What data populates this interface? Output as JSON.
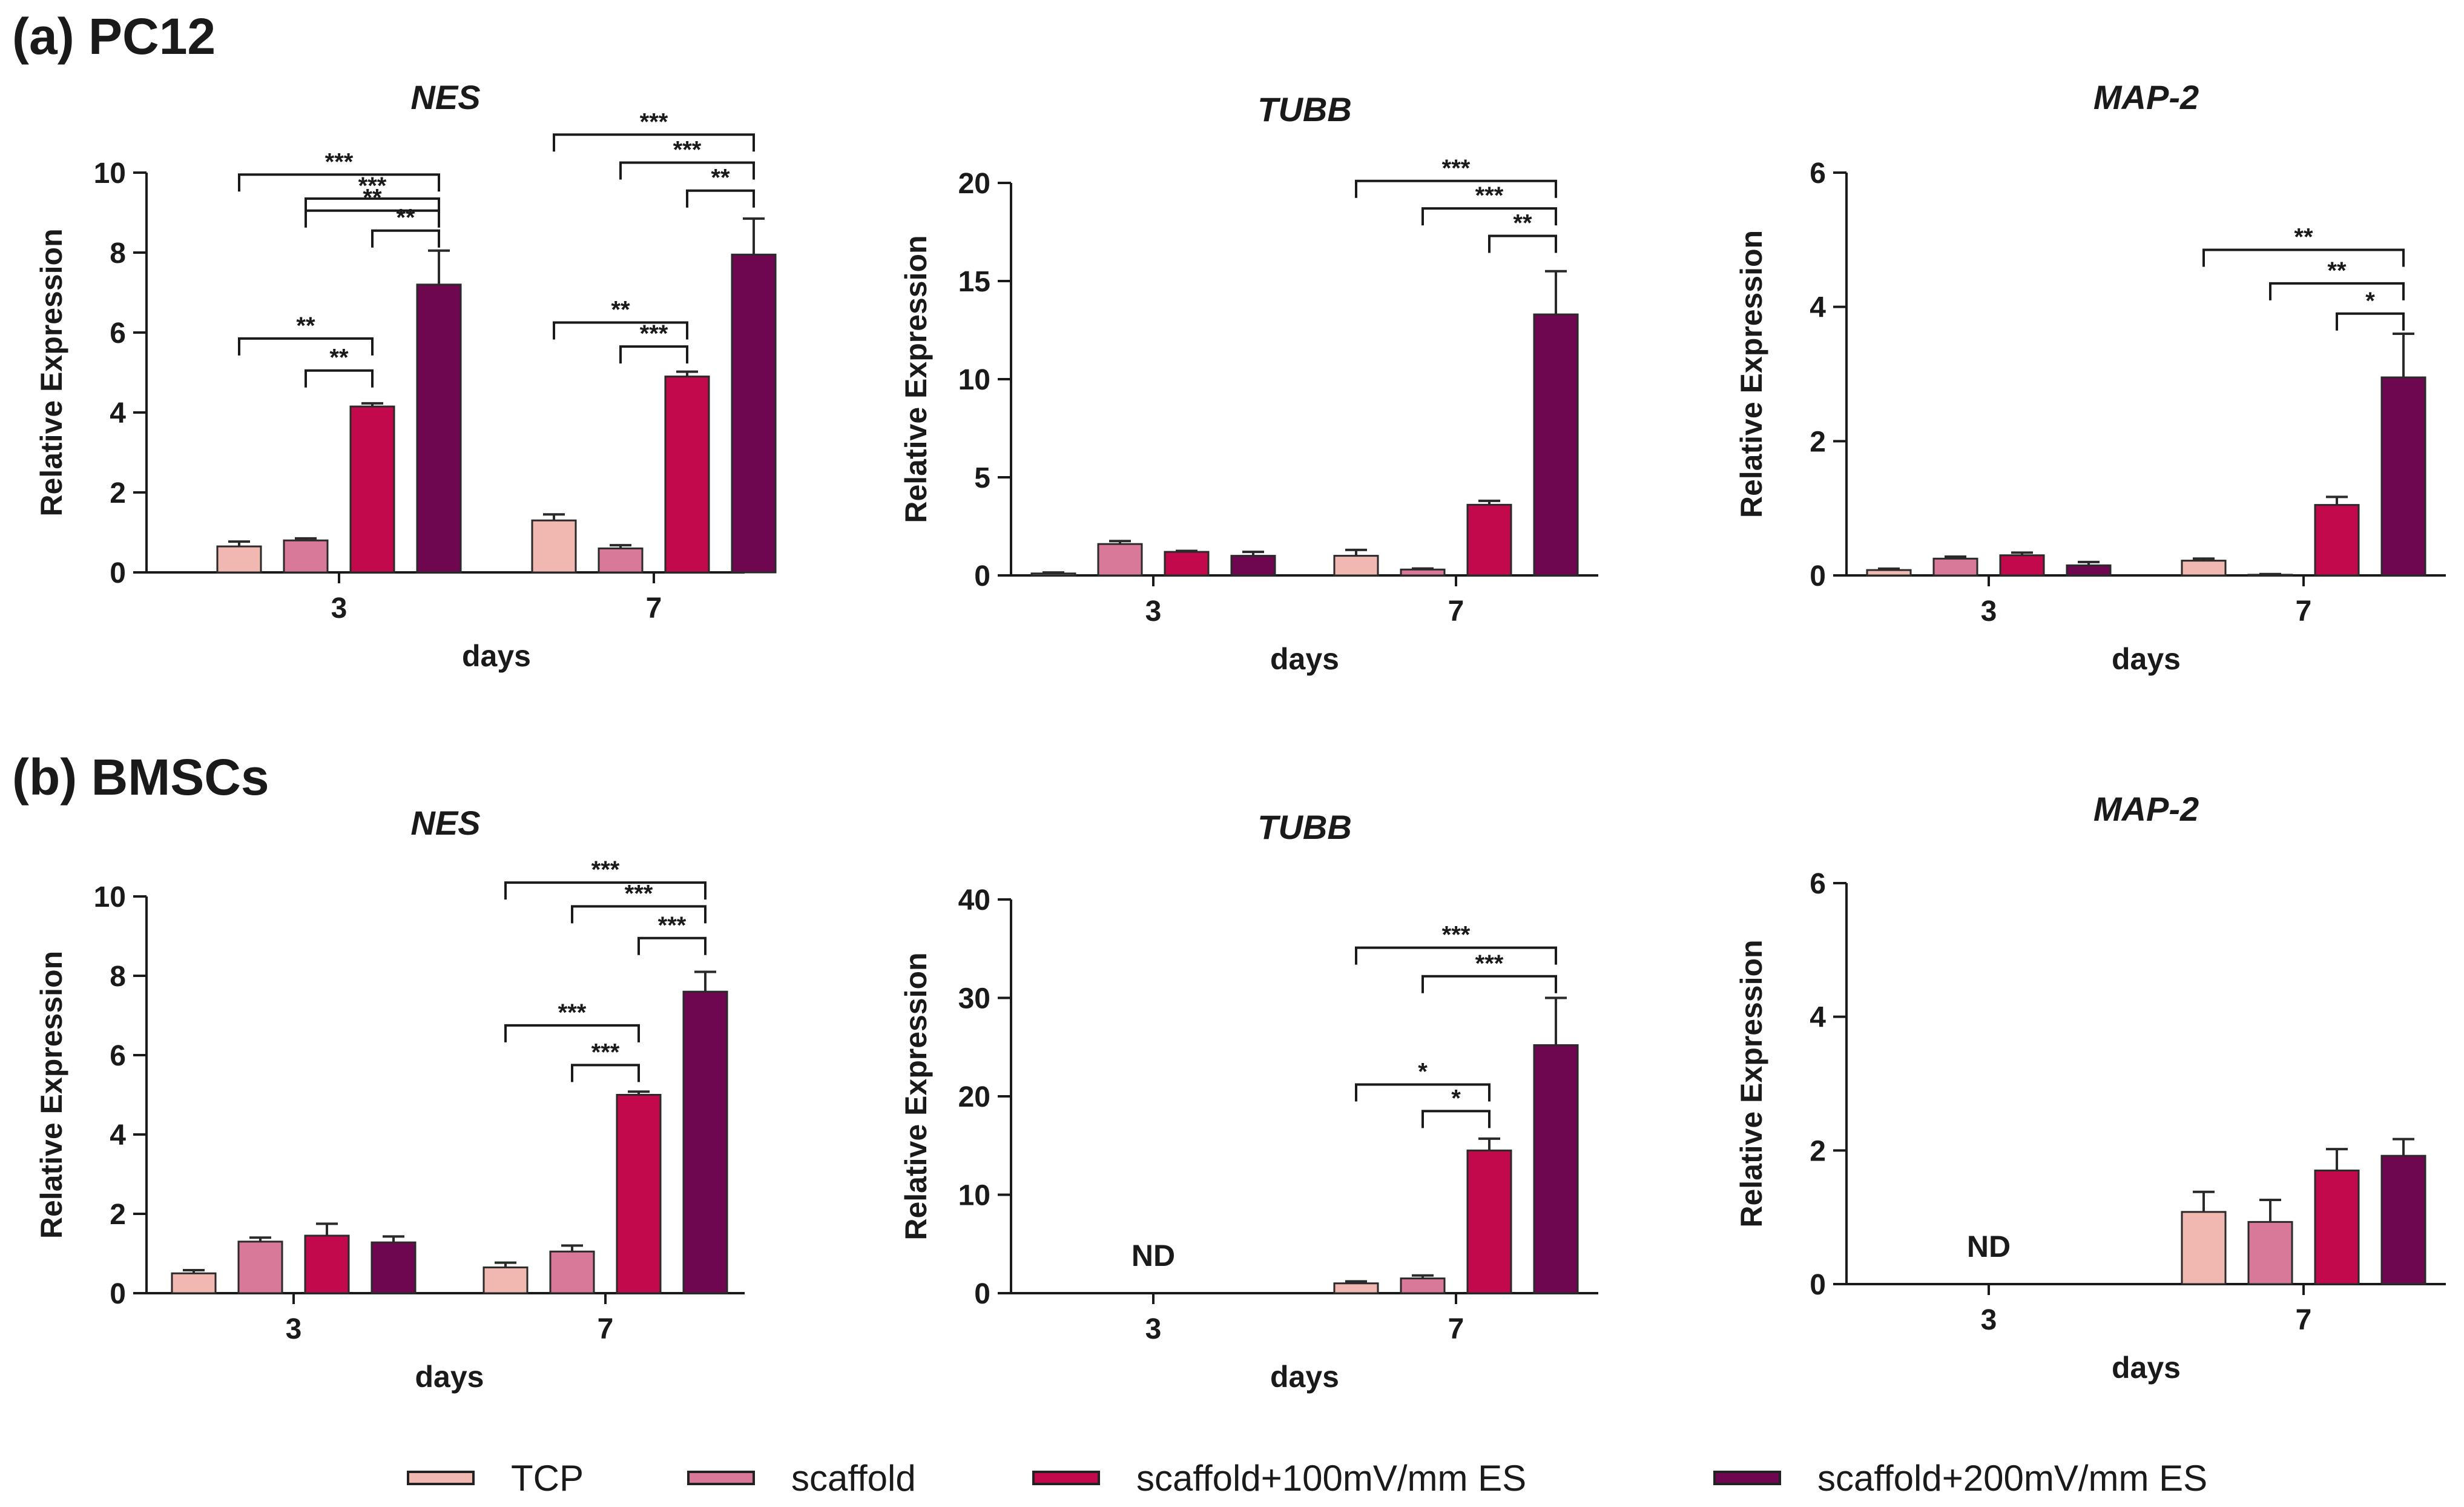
{
  "sections": [
    {
      "label": "(a) PC12"
    },
    {
      "label": "(b) BMSCs"
    }
  ],
  "legend": [
    {
      "label": "TCP",
      "color": "#f0b8b1"
    },
    {
      "label": "scaffold",
      "color": "#d9799a"
    },
    {
      "label": "scaffold+100mV/mm ES",
      "color": "#c2094b"
    },
    {
      "label": "scaffold+200mV/mm ES",
      "color": "#6f0650"
    }
  ],
  "chart_data": [
    {
      "panel": "a",
      "type": "bar",
      "title": "NES",
      "xlabel": "days",
      "ylabel": "Relative Expression",
      "categories": [
        "3",
        "7"
      ],
      "ylim": [
        0,
        10
      ],
      "yticks": [
        0,
        2,
        4,
        6,
        8,
        10
      ],
      "series": [
        {
          "name": "TCP",
          "values": [
            0.65,
            1.3
          ],
          "errors": [
            0.12,
            0.15
          ]
        },
        {
          "name": "scaffold",
          "values": [
            0.8,
            0.6
          ],
          "errors": [
            0.05,
            0.08
          ]
        },
        {
          "name": "scaffold+100mV/mm ES",
          "values": [
            4.15,
            4.9
          ],
          "errors": [
            0.08,
            0.12
          ]
        },
        {
          "name": "scaffold+200mV/mm ES",
          "values": [
            7.2,
            7.95
          ],
          "errors": [
            0.85,
            0.9
          ]
        }
      ],
      "brackets": [
        {
          "cat": 0,
          "from": 1,
          "to": 3,
          "y": 9.05,
          "text": "**"
        },
        {
          "cat": 0,
          "from": 0,
          "to": 3,
          "y": 9.95,
          "text": "***"
        },
        {
          "cat": 0,
          "from": 1,
          "to": 3,
          "y": 9.35,
          "text": "***"
        },
        {
          "cat": 0,
          "from": 2,
          "to": 3,
          "y": 8.55,
          "text": "**"
        },
        {
          "cat": 0,
          "from": 0,
          "to": 2,
          "y": 5.85,
          "text": "**"
        },
        {
          "cat": 0,
          "from": 1,
          "to": 2,
          "y": 5.05,
          "text": "**"
        },
        {
          "cat": 1,
          "from": 0,
          "to": 3,
          "y": 10.95,
          "text": "***"
        },
        {
          "cat": 1,
          "from": 1,
          "to": 3,
          "y": 10.25,
          "text": "***"
        },
        {
          "cat": 1,
          "from": 2,
          "to": 3,
          "y": 9.55,
          "text": "**"
        },
        {
          "cat": 1,
          "from": 0,
          "to": 2,
          "y": 6.25,
          "text": "**"
        },
        {
          "cat": 1,
          "from": 1,
          "to": 2,
          "y": 5.65,
          "text": "***"
        }
      ]
    },
    {
      "panel": "a",
      "type": "bar",
      "title": "TUBB",
      "xlabel": "days",
      "ylabel": "Relative Expression",
      "categories": [
        "3",
        "7"
      ],
      "ylim": [
        0,
        20
      ],
      "yticks": [
        0,
        5,
        10,
        15,
        20
      ],
      "series": [
        {
          "name": "TCP",
          "values": [
            0.1,
            1.0
          ],
          "errors": [
            0.05,
            0.3
          ]
        },
        {
          "name": "scaffold",
          "values": [
            1.6,
            0.3
          ],
          "errors": [
            0.15,
            0.05
          ]
        },
        {
          "name": "scaffold+100mV/mm ES",
          "values": [
            1.2,
            3.6
          ],
          "errors": [
            0.05,
            0.2
          ]
        },
        {
          "name": "scaffold+200mV/mm ES",
          "values": [
            1.0,
            13.3
          ],
          "errors": [
            0.2,
            2.2
          ]
        }
      ],
      "brackets": [
        {
          "cat": 1,
          "from": 0,
          "to": 3,
          "y": 20.1,
          "text": "***"
        },
        {
          "cat": 1,
          "from": 1,
          "to": 3,
          "y": 18.7,
          "text": "***"
        },
        {
          "cat": 1,
          "from": 2,
          "to": 3,
          "y": 17.3,
          "text": "**"
        }
      ]
    },
    {
      "panel": "a",
      "type": "bar",
      "title": "MAP-2",
      "xlabel": "days",
      "ylabel": "Relative Expression",
      "categories": [
        "3",
        "7"
      ],
      "ylim": [
        0,
        6
      ],
      "yticks": [
        0,
        2,
        4,
        6
      ],
      "series": [
        {
          "name": "TCP",
          "values": [
            0.08,
            0.22
          ],
          "errors": [
            0.02,
            0.03
          ]
        },
        {
          "name": "scaffold",
          "values": [
            0.25,
            0.01
          ],
          "errors": [
            0.03,
            0.01
          ]
        },
        {
          "name": "scaffold+100mV/mm ES",
          "values": [
            0.3,
            1.05
          ],
          "errors": [
            0.04,
            0.12
          ]
        },
        {
          "name": "scaffold+200mV/mm ES",
          "values": [
            0.15,
            2.95
          ],
          "errors": [
            0.05,
            0.65
          ]
        }
      ],
      "brackets": [
        {
          "cat": 1,
          "from": 0,
          "to": 3,
          "y": 4.85,
          "text": "**"
        },
        {
          "cat": 1,
          "from": 1,
          "to": 3,
          "y": 4.35,
          "text": "**"
        },
        {
          "cat": 1,
          "from": 2,
          "to": 3,
          "y": 3.9,
          "text": "*"
        }
      ]
    },
    {
      "panel": "b",
      "type": "bar",
      "title": "NES",
      "xlabel": "days",
      "ylabel": "Relative Expression",
      "categories": [
        "3",
        "7"
      ],
      "ylim": [
        0,
        10
      ],
      "yticks": [
        0,
        2,
        4,
        6,
        8,
        10
      ],
      "series": [
        {
          "name": "TCP",
          "values": [
            0.5,
            0.65
          ],
          "errors": [
            0.08,
            0.12
          ]
        },
        {
          "name": "scaffold",
          "values": [
            1.3,
            1.05
          ],
          "errors": [
            0.1,
            0.15
          ]
        },
        {
          "name": "scaffold+100mV/mm ES",
          "values": [
            1.45,
            5.0
          ],
          "errors": [
            0.3,
            0.08
          ]
        },
        {
          "name": "scaffold+200mV/mm ES",
          "values": [
            1.28,
            7.6
          ],
          "errors": [
            0.15,
            0.5
          ]
        }
      ],
      "brackets": [
        {
          "cat": 1,
          "from": 0,
          "to": 3,
          "y": 10.35,
          "text": "***"
        },
        {
          "cat": 1,
          "from": 1,
          "to": 3,
          "y": 9.75,
          "text": "***"
        },
        {
          "cat": 1,
          "from": 2,
          "to": 3,
          "y": 8.95,
          "text": "***"
        },
        {
          "cat": 1,
          "from": 0,
          "to": 2,
          "y": 6.75,
          "text": "***"
        },
        {
          "cat": 1,
          "from": 1,
          "to": 2,
          "y": 5.75,
          "text": "***"
        }
      ]
    },
    {
      "panel": "b",
      "type": "bar",
      "title": "TUBB",
      "xlabel": "days",
      "ylabel": "Relative Expression",
      "categories": [
        "3",
        "7"
      ],
      "ylim": [
        0,
        40
      ],
      "yticks": [
        0,
        10,
        20,
        30,
        40
      ],
      "category_annotations": [
        "ND",
        ""
      ],
      "series": [
        {
          "name": "TCP",
          "values": [
            0,
            1.0
          ],
          "errors": [
            0,
            0.2
          ]
        },
        {
          "name": "scaffold",
          "values": [
            0,
            1.5
          ],
          "errors": [
            0,
            0.3
          ]
        },
        {
          "name": "scaffold+100mV/mm ES",
          "values": [
            0,
            14.5
          ],
          "errors": [
            0,
            1.2
          ]
        },
        {
          "name": "scaffold+200mV/mm ES",
          "values": [
            0,
            25.2
          ],
          "errors": [
            0,
            4.8
          ]
        }
      ],
      "brackets": [
        {
          "cat": 1,
          "from": 0,
          "to": 3,
          "y": 35.1,
          "text": "***"
        },
        {
          "cat": 1,
          "from": 1,
          "to": 3,
          "y": 32.2,
          "text": "***"
        },
        {
          "cat": 1,
          "from": 0,
          "to": 2,
          "y": 21.2,
          "text": "*"
        },
        {
          "cat": 1,
          "from": 1,
          "to": 2,
          "y": 18.5,
          "text": "*"
        }
      ]
    },
    {
      "panel": "b",
      "type": "bar",
      "title": "MAP-2",
      "xlabel": "days",
      "ylabel": "Relative Expression",
      "categories": [
        "3",
        "7"
      ],
      "ylim": [
        0,
        6
      ],
      "yticks": [
        0,
        2,
        4,
        6
      ],
      "category_annotations": [
        "ND",
        ""
      ],
      "series": [
        {
          "name": "TCP",
          "values": [
            0,
            1.08
          ],
          "errors": [
            0,
            0.3
          ]
        },
        {
          "name": "scaffold",
          "values": [
            0,
            0.93
          ],
          "errors": [
            0,
            0.33
          ]
        },
        {
          "name": "scaffold+100mV/mm ES",
          "values": [
            0,
            1.7
          ],
          "errors": [
            0,
            0.32
          ]
        },
        {
          "name": "scaffold+200mV/mm ES",
          "values": [
            0,
            1.92
          ],
          "errors": [
            0,
            0.25
          ]
        }
      ],
      "brackets": []
    }
  ]
}
